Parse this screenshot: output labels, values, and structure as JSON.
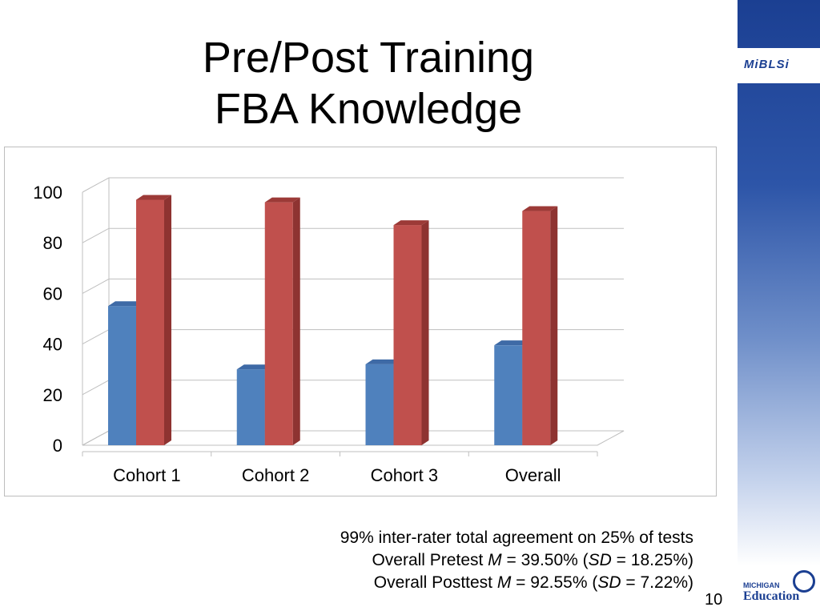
{
  "title": {
    "line1": "Pre/Post Training",
    "line2": "FBA Knowledge"
  },
  "branding": {
    "logo_text": "MiBLSi",
    "edu_small": "MICHIGAN",
    "edu_big": "Education"
  },
  "colors": {
    "pretest": "#4f81bd",
    "posttest": "#c0504d",
    "sidebar": "#1b3f92"
  },
  "chart_data": {
    "type": "bar",
    "categories": [
      "Cohort 1",
      "Cohort 2",
      "Cohort 3",
      "Overall"
    ],
    "series": [
      {
        "values": [
          55,
          30,
          32,
          39.5
        ]
      },
      {
        "values": [
          97,
          96,
          87,
          92.55
        ]
      }
    ],
    "ylim": [
      0,
      100
    ],
    "yticks": [
      0,
      20,
      40,
      60,
      80,
      100
    ],
    "grid": true
  },
  "notes": {
    "line1": "99% inter-rater total agreement on 25% of tests",
    "line2_pre": "Overall Pretest ",
    "line2_m": "M",
    "line2_mid": " = 39.50% (",
    "line2_sd": "SD",
    "line2_post": " = 18.25%)",
    "line3_pre": "Overall Posttest ",
    "line3_m": "M",
    "line3_mid": " = 92.55% (",
    "line3_sd": "SD",
    "line3_post": " = 7.22%)"
  },
  "page_number": "10"
}
